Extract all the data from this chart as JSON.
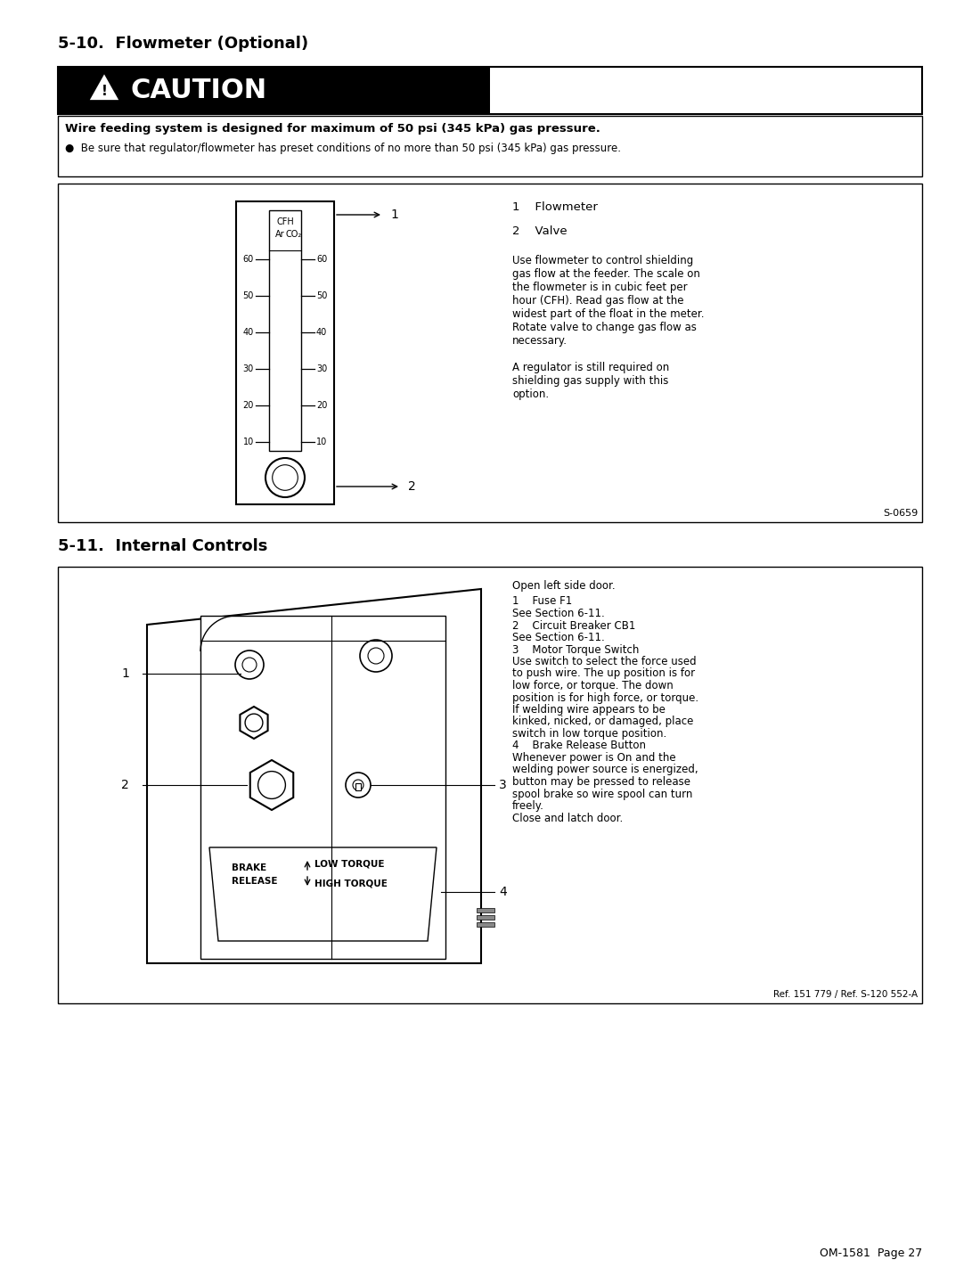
{
  "page_title_top": "5-10.  Flowmeter (Optional)",
  "section2_title": "5-11.  Internal Controls",
  "caution_text": "CAUTION",
  "caution_bold": "Wire feeding system is designed for maximum of 50 psi (345 kPa) gas pressure.",
  "caution_bullet": "Be sure that regulator/flowmeter has preset conditions of no more than 50 psi (345 kPa) gas pressure.",
  "flowmeter_item1": "1    Flowmeter",
  "flowmeter_item2": "2    Valve",
  "flowmeter_desc1_lines": [
    "Use flowmeter to control shielding",
    "gas flow at the feeder. The scale on",
    "the flowmeter is in cubic feet per",
    "hour (CFH). Read gas flow at the",
    "widest part of the float in the meter.",
    "Rotate valve to change gas flow as",
    "necessary."
  ],
  "flowmeter_desc2_lines": [
    "A regulator is still required on",
    "shielding gas supply with this",
    "option."
  ],
  "internal_open": "Open left side door.",
  "internal_lines": [
    {
      "text": "1    Fuse F1",
      "bold": false
    },
    {
      "text": "See Section 6-11.",
      "bold": false
    },
    {
      "text": "2    Circuit Breaker CB1",
      "bold": false
    },
    {
      "text": "See Section 6-11.",
      "bold": false
    },
    {
      "text": "3    Motor Torque Switch",
      "bold": false
    },
    {
      "text": "Use switch to select the force used",
      "bold": false
    },
    {
      "text": "to push wire. The up position is for",
      "bold": false
    },
    {
      "text": "low force, or torque. The down",
      "bold": false
    },
    {
      "text": "position is for high force, or torque.",
      "bold": false
    },
    {
      "text": "If welding wire appears to be",
      "bold": false
    },
    {
      "text": "kinked, nicked, or damaged, place",
      "bold": false
    },
    {
      "text": "switch in low torque position.",
      "bold": false
    },
    {
      "text": "4    Brake Release Button",
      "bold": false
    },
    {
      "text": "Whenever power is On and the",
      "bold": false
    },
    {
      "text": "welding power source is energized,",
      "bold": false
    },
    {
      "text": "button may be pressed to release",
      "bold": false
    },
    {
      "text": "spool brake so wire spool can turn",
      "bold": false
    },
    {
      "text": "freely.",
      "bold": false
    },
    {
      "text": "Close and latch door.",
      "bold": false
    }
  ],
  "ref_flowmeter": "S-0659",
  "ref_internal": "Ref. 151 779 / Ref. S-120 552-A",
  "footer": "OM-1581  Page 27",
  "scale_vals": [
    60,
    50,
    40,
    30,
    20,
    10
  ],
  "bg_color": "#ffffff",
  "black": "#000000"
}
